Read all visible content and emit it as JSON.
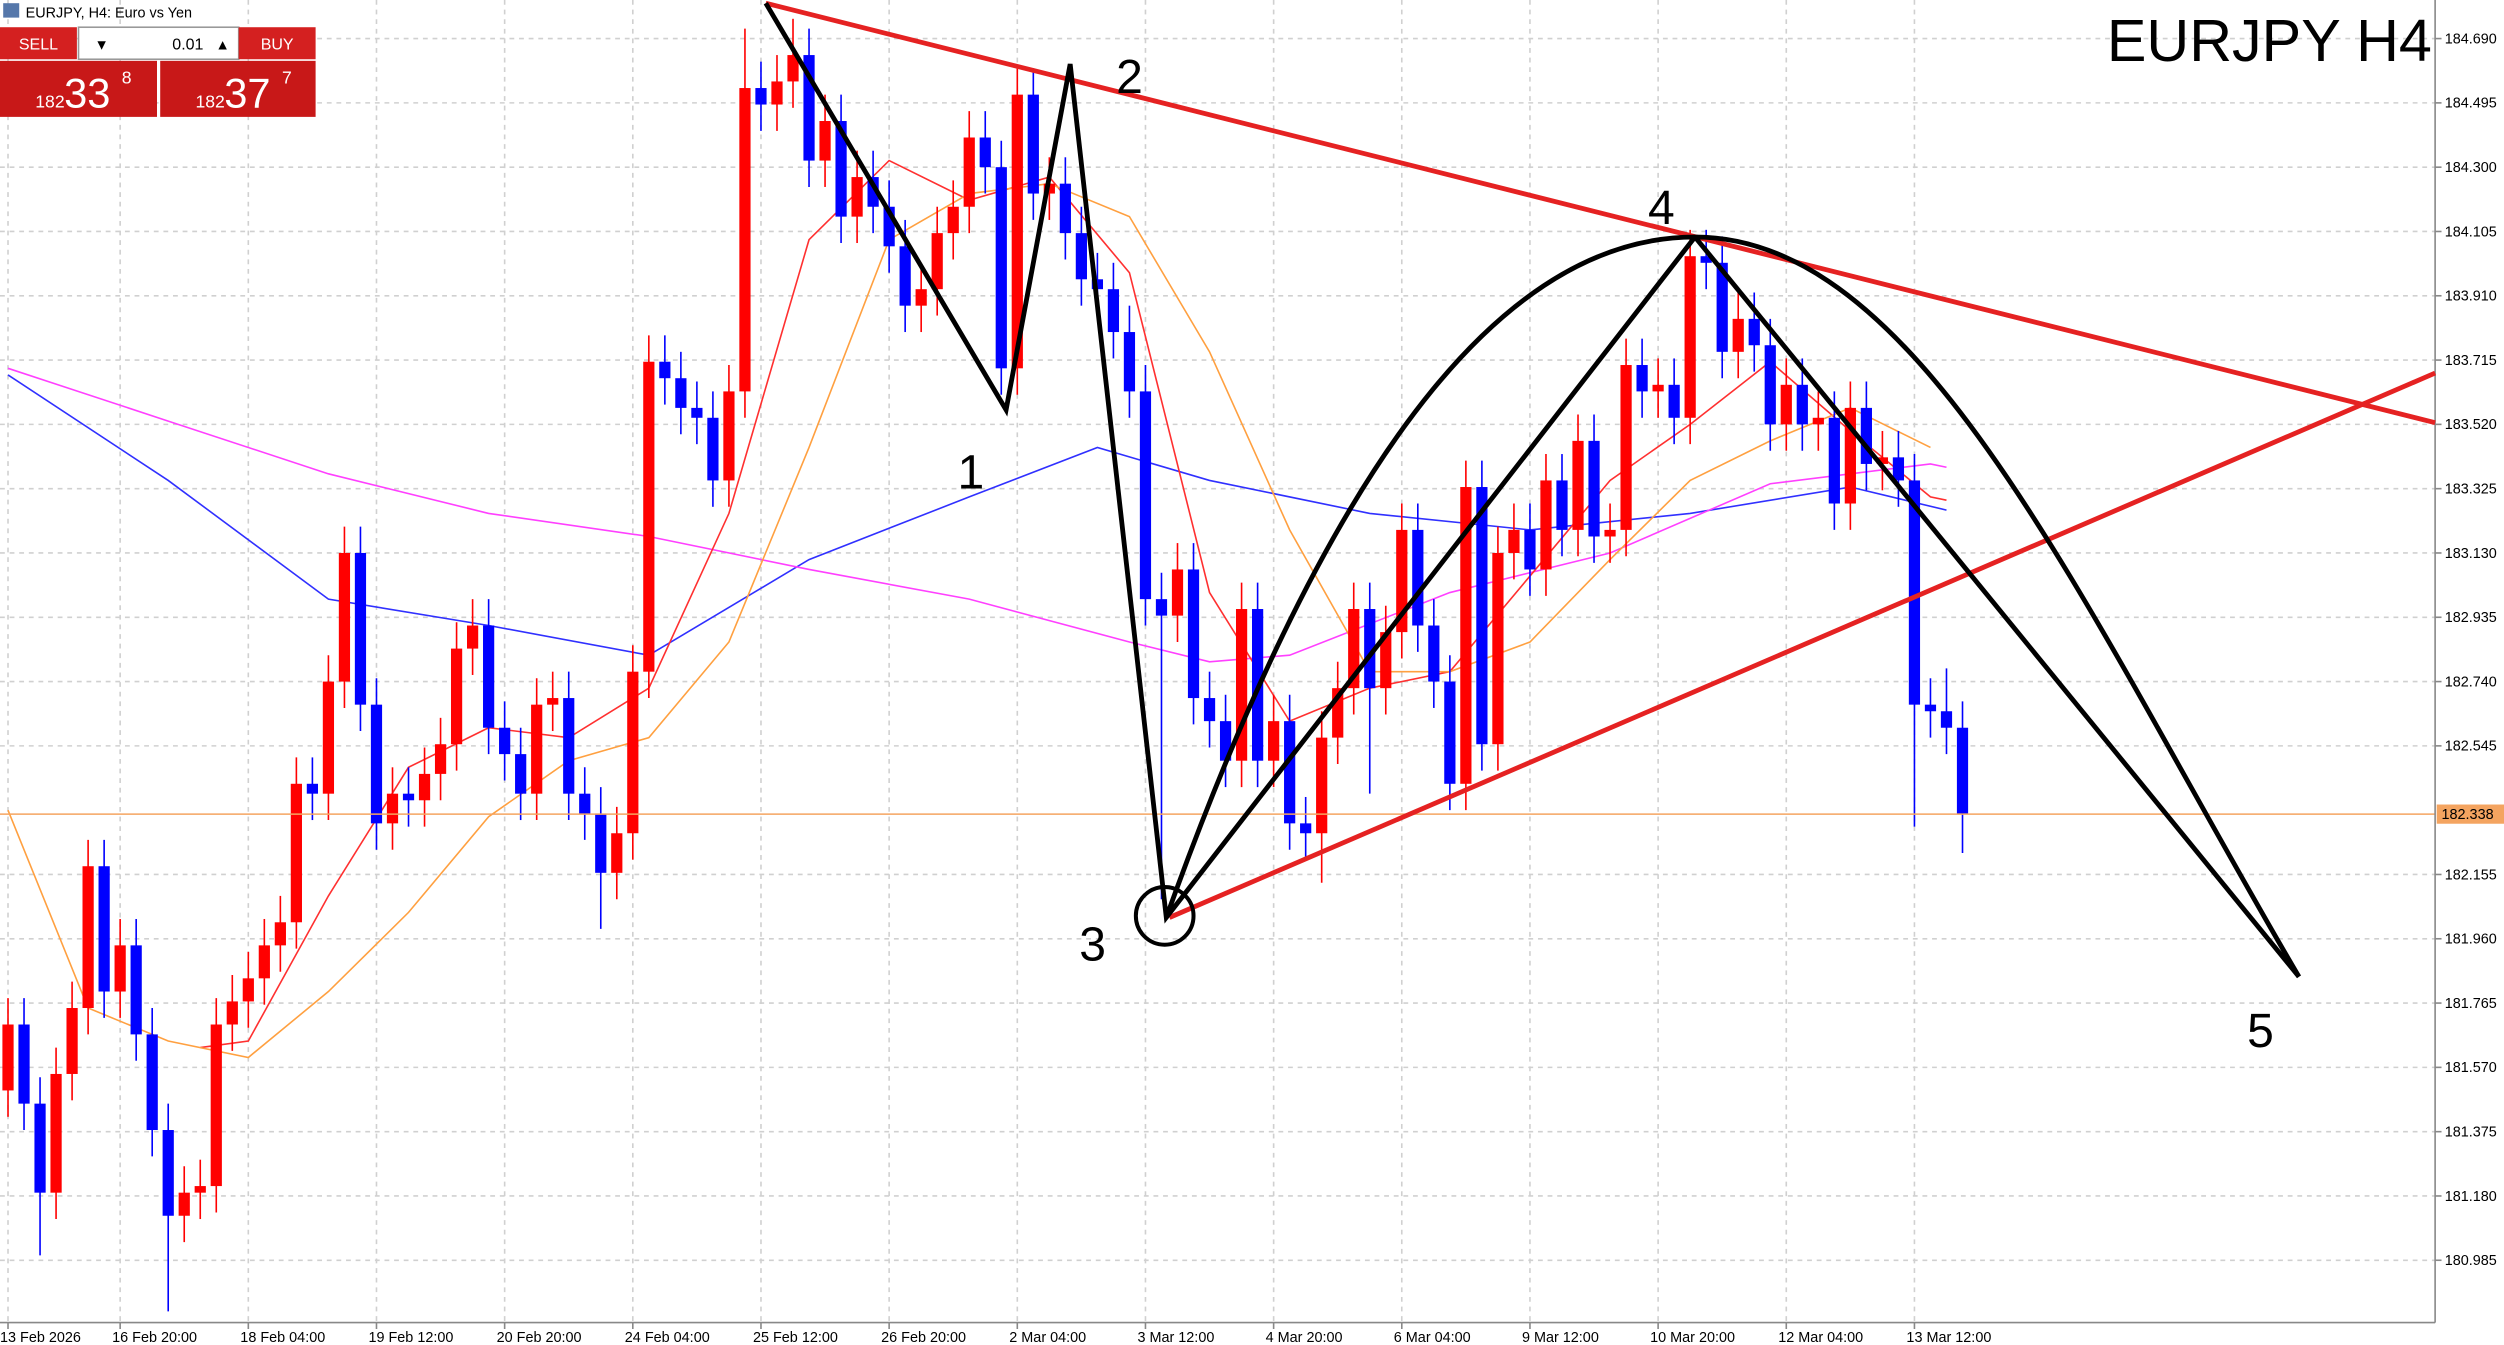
{
  "chart_data": {
    "type": "candlestick",
    "title": "EURJPY H4",
    "window_title": "EURJPY, H4:  Euro vs Yen",
    "up_color": "#ff0000",
    "down_color": "#0000ff",
    "grid": true,
    "xlim": [
      -0.5,
      151.5
    ],
    "ylim": [
      180.796,
      184.807
    ],
    "xticks": [
      {
        "value": 0,
        "label": "13 Feb 2026"
      },
      {
        "value": 7,
        "label": "16 Feb 20:00"
      },
      {
        "value": 15,
        "label": "18 Feb 04:00"
      },
      {
        "value": 23,
        "label": "19 Feb 12:00"
      },
      {
        "value": 31,
        "label": "20 Feb 20:00"
      },
      {
        "value": 39,
        "label": "24 Feb 04:00"
      },
      {
        "value": 47,
        "label": "25 Feb 12:00"
      },
      {
        "value": 55,
        "label": "26 Feb 20:00"
      },
      {
        "value": 63,
        "label": "2 Mar 04:00"
      },
      {
        "value": 71,
        "label": "3 Mar 12:00"
      },
      {
        "value": 79,
        "label": "4 Mar 20:00"
      },
      {
        "value": 87,
        "label": "6 Mar 04:00"
      },
      {
        "value": 95,
        "label": "9 Mar 12:00"
      },
      {
        "value": 103,
        "label": "10 Mar 20:00"
      },
      {
        "value": 111,
        "label": "12 Mar 04:00"
      },
      {
        "value": 119,
        "label": "13 Mar 12:00"
      }
    ],
    "yticks": [
      {
        "value": 184.69,
        "label": "184.690"
      },
      184.495,
      {
        "value": 184.3,
        "label": "184.300"
      },
      184.105,
      {
        "value": 183.91,
        "label": "183.910"
      },
      183.715,
      {
        "value": 183.52,
        "label": "183.520"
      },
      183.325,
      {
        "value": 183.13,
        "label": "183.130"
      },
      182.935,
      {
        "value": 182.74,
        "label": "182.740"
      },
      182.545,
      182.155,
      {
        "value": 181.96,
        "label": "181.960"
      },
      181.765,
      {
        "value": 181.57,
        "label": "181.570"
      },
      181.375,
      {
        "value": 181.18,
        "label": "181.180"
      },
      180.985
    ],
    "last_price": 182.338,
    "last_price_color": "#f4a460",
    "open": [
      181.5,
      181.7,
      181.46,
      181.19,
      181.55,
      181.75,
      182.18,
      181.8,
      181.94,
      181.67,
      181.38,
      181.12,
      181.19,
      181.21,
      181.7,
      181.77,
      181.84,
      181.94,
      182.01,
      182.43,
      182.4,
      182.74,
      183.13,
      182.67,
      182.31,
      182.4,
      182.38,
      182.46,
      182.55,
      182.84,
      182.91,
      182.6,
      182.52,
      182.4,
      182.67,
      182.69,
      182.4,
      182.34,
      182.16,
      182.28,
      182.77,
      183.71,
      183.66,
      183.57,
      183.54,
      183.35,
      183.62,
      184.54,
      184.49,
      184.56,
      184.64,
      184.32,
      184.44,
      184.15,
      184.27,
      184.18,
      184.06,
      183.88,
      183.93,
      184.1,
      184.18,
      184.39,
      184.3,
      183.69,
      184.52,
      184.22,
      184.25,
      184.1,
      183.96,
      183.93,
      183.8,
      183.62,
      182.99,
      182.94,
      183.08,
      182.69,
      182.62,
      182.5,
      182.96,
      182.5,
      182.62,
      182.31,
      182.28,
      182.57,
      182.72,
      182.96,
      182.72,
      182.89,
      183.2,
      182.91,
      182.74,
      182.43,
      183.33,
      182.55,
      183.13,
      183.2,
      183.08,
      183.35,
      183.2,
      183.47,
      183.18,
      183.2,
      183.7,
      183.62,
      183.64,
      183.54,
      184.03,
      184.01,
      183.74,
      183.84,
      183.76,
      183.52,
      183.64,
      183.52,
      183.54,
      183.28,
      183.57,
      183.4,
      183.42,
      183.35,
      182.67,
      182.65,
      182.6
    ],
    "high": [
      181.78,
      181.78,
      181.54,
      181.63,
      181.83,
      182.26,
      182.26,
      182.02,
      182.02,
      181.75,
      181.46,
      181.27,
      181.29,
      181.78,
      181.85,
      181.92,
      182.02,
      182.09,
      182.51,
      182.51,
      182.82,
      183.21,
      183.21,
      182.75,
      182.48,
      182.48,
      182.54,
      182.63,
      182.92,
      182.99,
      182.99,
      182.68,
      182.6,
      182.75,
      182.77,
      182.77,
      182.48,
      182.42,
      182.36,
      182.85,
      183.79,
      183.79,
      183.74,
      183.65,
      183.62,
      183.7,
      184.72,
      184.62,
      184.64,
      184.75,
      184.72,
      184.52,
      184.52,
      184.35,
      184.35,
      184.26,
      184.14,
      184.01,
      184.18,
      184.26,
      184.47,
      184.47,
      184.38,
      184.6,
      184.6,
      184.33,
      184.33,
      184.18,
      184.04,
      184.01,
      183.88,
      183.7,
      183.07,
      183.16,
      183.16,
      182.77,
      182.7,
      183.04,
      183.04,
      182.7,
      182.7,
      182.39,
      182.65,
      182.8,
      183.04,
      183.04,
      182.97,
      183.28,
      183.28,
      182.99,
      182.82,
      183.41,
      183.41,
      183.21,
      183.28,
      183.28,
      183.43,
      183.43,
      183.55,
      183.55,
      183.28,
      183.78,
      183.78,
      183.72,
      183.72,
      184.11,
      184.11,
      184.09,
      183.92,
      183.92,
      183.84,
      183.72,
      183.72,
      183.62,
      183.62,
      183.65,
      183.65,
      183.5,
      183.5,
      183.43,
      182.75,
      182.78,
      182.68
    ],
    "low": [
      181.42,
      181.38,
      181.0,
      181.11,
      181.47,
      181.67,
      181.72,
      181.72,
      181.59,
      181.3,
      180.83,
      181.04,
      181.11,
      181.13,
      181.62,
      181.69,
      181.76,
      181.86,
      181.93,
      182.32,
      182.32,
      182.66,
      182.59,
      182.23,
      182.23,
      182.3,
      182.3,
      182.38,
      182.47,
      182.76,
      182.52,
      182.44,
      182.32,
      182.32,
      182.59,
      182.32,
      182.26,
      181.99,
      182.08,
      182.2,
      182.69,
      183.58,
      183.49,
      183.46,
      183.27,
      183.27,
      183.54,
      184.41,
      184.41,
      184.48,
      184.24,
      184.24,
      184.07,
      184.07,
      184.1,
      183.98,
      183.8,
      183.8,
      183.85,
      184.02,
      184.1,
      184.22,
      183.61,
      183.61,
      184.14,
      184.14,
      184.02,
      183.88,
      183.85,
      183.72,
      183.54,
      182.91,
      182.08,
      182.86,
      182.61,
      182.54,
      182.42,
      182.42,
      182.42,
      182.42,
      182.23,
      182.2,
      182.13,
      182.49,
      182.64,
      182.4,
      182.64,
      182.81,
      182.83,
      182.66,
      182.35,
      182.35,
      182.47,
      182.47,
      183.05,
      183.0,
      183.0,
      183.12,
      183.12,
      183.1,
      183.1,
      183.12,
      183.54,
      183.54,
      183.46,
      183.46,
      183.93,
      183.66,
      183.66,
      183.68,
      183.44,
      183.44,
      183.44,
      183.44,
      183.2,
      183.2,
      183.32,
      183.32,
      183.27,
      182.3,
      182.57,
      182.52,
      182.22
    ],
    "close": [
      181.7,
      181.46,
      181.19,
      181.55,
      181.75,
      182.18,
      181.8,
      181.94,
      181.67,
      181.38,
      181.12,
      181.19,
      181.21,
      181.7,
      181.77,
      181.84,
      181.94,
      182.01,
      182.43,
      182.4,
      182.74,
      183.13,
      182.67,
      182.31,
      182.4,
      182.38,
      182.46,
      182.55,
      182.84,
      182.91,
      182.6,
      182.52,
      182.4,
      182.67,
      182.69,
      182.4,
      182.34,
      182.16,
      182.28,
      182.77,
      183.71,
      183.66,
      183.57,
      183.54,
      183.35,
      183.62,
      184.54,
      184.49,
      184.56,
      184.64,
      184.32,
      184.44,
      184.15,
      184.27,
      184.18,
      184.06,
      183.88,
      183.93,
      184.1,
      184.18,
      184.39,
      184.3,
      183.69,
      184.52,
      184.22,
      184.25,
      184.1,
      183.96,
      183.93,
      183.8,
      183.62,
      182.99,
      182.94,
      183.08,
      182.69,
      182.62,
      182.5,
      182.96,
      182.5,
      182.62,
      182.31,
      182.28,
      182.57,
      182.72,
      182.96,
      182.72,
      182.89,
      183.2,
      182.91,
      182.74,
      182.43,
      183.33,
      182.55,
      183.13,
      183.2,
      183.08,
      183.35,
      183.2,
      183.47,
      183.18,
      183.2,
      183.7,
      183.62,
      183.64,
      183.54,
      184.03,
      184.01,
      183.74,
      183.84,
      183.76,
      183.52,
      183.64,
      183.52,
      183.54,
      183.28,
      183.57,
      183.4,
      183.42,
      183.35,
      182.67,
      182.65,
      182.6,
      182.34
    ],
    "series": [
      {
        "color": "#3030ff",
        "x": [
          0,
          10,
          20,
          30,
          40,
          50,
          60,
          68,
          75,
          85,
          95,
          105,
          115,
          121
        ],
        "values": [
          183.67,
          183.35,
          182.99,
          182.91,
          182.82,
          183.11,
          183.3,
          183.45,
          183.35,
          183.25,
          183.2,
          183.25,
          183.33,
          183.26
        ]
      },
      {
        "color": "#ff40ff",
        "x": [
          0,
          10,
          20,
          30,
          40,
          50,
          60,
          70,
          75,
          80,
          90,
          100,
          110,
          120,
          121
        ],
        "values": [
          183.69,
          183.53,
          183.37,
          183.25,
          183.18,
          183.08,
          182.99,
          182.86,
          182.8,
          182.82,
          183.01,
          183.13,
          183.34,
          183.4,
          183.39
        ]
      },
      {
        "color": "#ff3030",
        "x": [
          12,
          15,
          20,
          25,
          30,
          35,
          40,
          45,
          50,
          55,
          60,
          65,
          70,
          75,
          80,
          85,
          90,
          95,
          100,
          105,
          110,
          115,
          120,
          121
        ],
        "values": [
          181.63,
          181.65,
          182.09,
          182.48,
          182.6,
          182.57,
          182.72,
          183.25,
          184.08,
          184.32,
          184.2,
          184.27,
          183.98,
          183.01,
          182.62,
          182.72,
          182.77,
          183.06,
          183.35,
          183.52,
          183.71,
          183.5,
          183.3,
          183.29
        ]
      },
      {
        "color": "#ffa040",
        "x": [
          0,
          5,
          10,
          15,
          20,
          25,
          30,
          35,
          40,
          45,
          50,
          55,
          60,
          65,
          70,
          75,
          80,
          85,
          90,
          95,
          100,
          105,
          110,
          115,
          120
        ],
        "values": [
          182.35,
          181.75,
          181.65,
          181.6,
          181.8,
          182.04,
          182.33,
          182.5,
          182.57,
          182.86,
          183.45,
          184.08,
          184.22,
          184.25,
          184.15,
          183.74,
          183.2,
          182.77,
          182.77,
          182.86,
          183.11,
          183.35,
          183.47,
          183.57,
          183.45
        ]
      }
    ],
    "annotations": [
      "1",
      "2",
      "3",
      "4",
      "5"
    ]
  },
  "trade_panel": {
    "sell_label": "SELL",
    "buy_label": "BUY",
    "volume": "0.01",
    "bid": [
      "182",
      "33",
      "8"
    ],
    "ask": [
      "182",
      "37",
      "7"
    ]
  }
}
